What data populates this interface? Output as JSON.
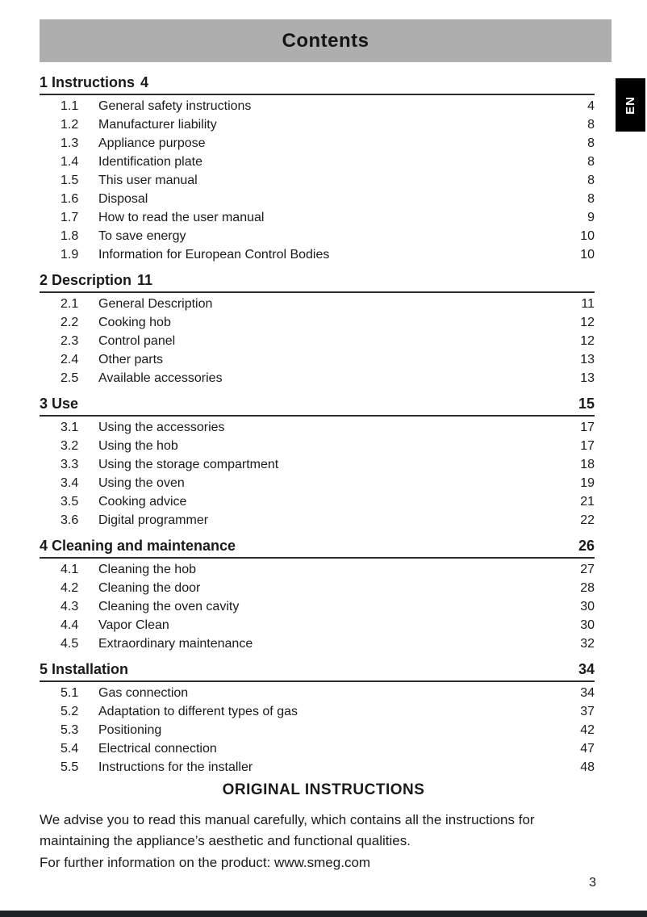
{
  "page": {
    "header_title": "Contents",
    "language_tab": "EN",
    "page_number": "3"
  },
  "toc": {
    "sections": [
      {
        "number": "1",
        "title": "Instructions",
        "page": "4",
        "page_inline": true,
        "items": [
          {
            "number": "1.1",
            "title": "General safety instructions",
            "page": "4"
          },
          {
            "number": "1.2",
            "title": "Manufacturer liability",
            "page": "8"
          },
          {
            "number": "1.3",
            "title": "Appliance purpose",
            "page": "8"
          },
          {
            "number": "1.4",
            "title": "Identification plate",
            "page": "8"
          },
          {
            "number": "1.5",
            "title": "This user manual",
            "page": "8"
          },
          {
            "number": "1.6",
            "title": "Disposal",
            "page": "8"
          },
          {
            "number": "1.7",
            "title": "How to read the user manual",
            "page": "9"
          },
          {
            "number": "1.8",
            "title": "To save energy",
            "page": "10"
          },
          {
            "number": "1.9",
            "title": "Information for European Control Bodies",
            "page": "10"
          }
        ]
      },
      {
        "number": "2",
        "title": "Description",
        "page": "11",
        "page_inline": true,
        "items": [
          {
            "number": "2.1",
            "title": "General Description",
            "page": "11"
          },
          {
            "number": "2.2",
            "title": "Cooking hob",
            "page": "12"
          },
          {
            "number": "2.3",
            "title": "Control panel",
            "page": "12"
          },
          {
            "number": "2.4",
            "title": "Other parts",
            "page": "13"
          },
          {
            "number": "2.5",
            "title": "Available accessories",
            "page": "13"
          }
        ]
      },
      {
        "number": "3",
        "title": "Use",
        "page": "15",
        "page_inline": false,
        "items": [
          {
            "number": "3.1",
            "title": "Using the accessories",
            "page": "17"
          },
          {
            "number": "3.2",
            "title": "Using the hob",
            "page": "17"
          },
          {
            "number": "3.3",
            "title": "Using the storage compartment",
            "page": "18"
          },
          {
            "number": "3.4",
            "title": "Using the oven",
            "page": "19"
          },
          {
            "number": "3.5",
            "title": "Cooking advice",
            "page": "21"
          },
          {
            "number": "3.6",
            "title": "Digital programmer",
            "page": "22"
          }
        ]
      },
      {
        "number": "4",
        "title": "Cleaning and maintenance",
        "page": "26",
        "page_inline": false,
        "items": [
          {
            "number": "4.1",
            "title": "Cleaning the hob",
            "page": "27"
          },
          {
            "number": "4.2",
            "title": "Cleaning the door",
            "page": "28"
          },
          {
            "number": "4.3",
            "title": "Cleaning the oven cavity",
            "page": "30"
          },
          {
            "number": "4.4",
            "title": "Vapor Clean",
            "page": "30"
          },
          {
            "number": "4.5",
            "title": "Extraordinary maintenance",
            "page": "32"
          }
        ]
      },
      {
        "number": "5",
        "title": "Installation",
        "page": "34",
        "page_inline": false,
        "items": [
          {
            "number": "5.1",
            "title": "Gas connection",
            "page": "34"
          },
          {
            "number": "5.2",
            "title": "Adaptation to different types of gas",
            "page": "37"
          },
          {
            "number": "5.3",
            "title": "Positioning",
            "page": "42"
          },
          {
            "number": "5.4",
            "title": "Electrical connection",
            "page": "47"
          },
          {
            "number": "5.5",
            "title": "Instructions for the installer",
            "page": "48"
          }
        ]
      }
    ]
  },
  "footer": {
    "heading": "ORIGINAL INSTRUCTIONS",
    "paragraph1": "We advise you to read this manual carefully, which contains all the instructions for maintaining the appliance’s aesthetic and functional qualities.",
    "paragraph2": "For further information on the product: www.smeg.com"
  },
  "colors": {
    "header_bar": "#aeaeae",
    "text": "#1a1a1a",
    "language_tab_bg": "#000000",
    "language_tab_text": "#ffffff",
    "bottom_bar": "#1e2228"
  }
}
